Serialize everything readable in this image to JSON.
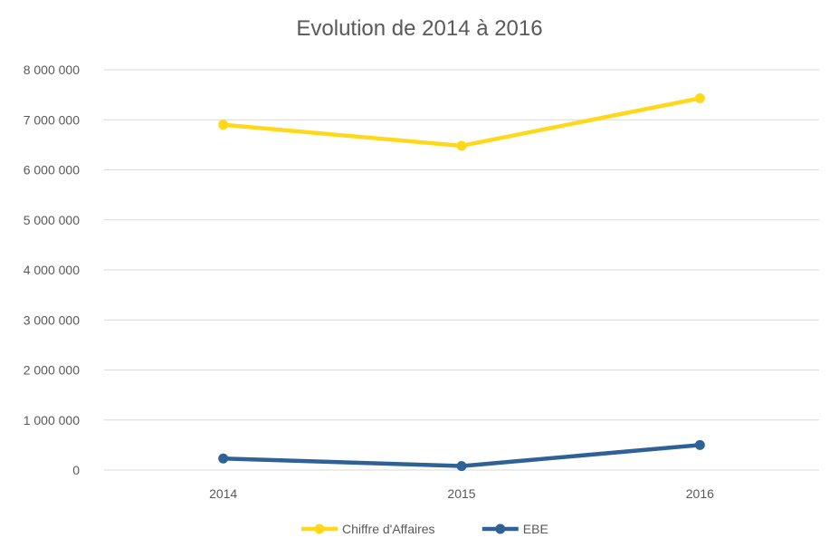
{
  "chart_data": {
    "type": "line",
    "title": "Evolution de 2014 à 2016",
    "xlabel": "",
    "ylabel": "",
    "categories": [
      "2014",
      "2015",
      "2016"
    ],
    "ylim": [
      0,
      8000000
    ],
    "yticks": [
      0,
      1000000,
      2000000,
      3000000,
      4000000,
      5000000,
      6000000,
      7000000,
      8000000
    ],
    "ytick_labels": [
      "0",
      "1 000 000",
      "2 000 000",
      "3 000 000",
      "4 000 000",
      "5 000 000",
      "6 000 000",
      "7 000 000",
      "8 000 000"
    ],
    "grid": true,
    "legend_position": "bottom",
    "series": [
      {
        "name": "Chiffre d'Affaires",
        "color": "#FFD919",
        "values": [
          6900000,
          6480000,
          7430000
        ]
      },
      {
        "name": "EBE",
        "color": "#2E6196",
        "values": [
          230000,
          80000,
          500000
        ]
      }
    ]
  }
}
